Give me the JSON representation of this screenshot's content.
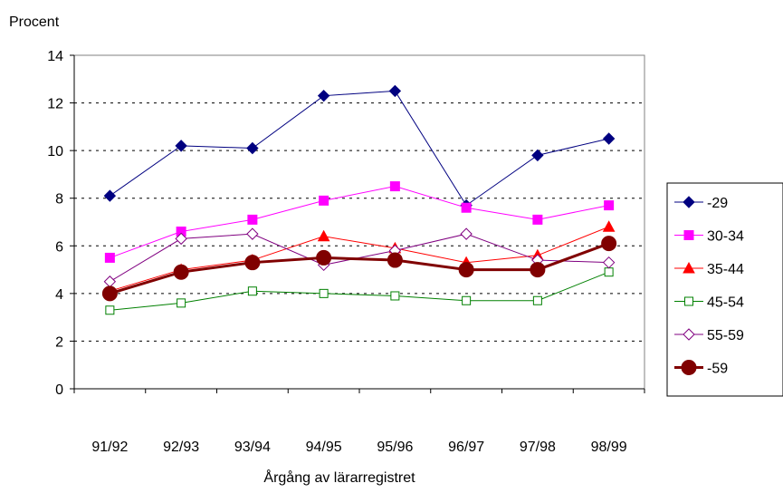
{
  "chart_data": {
    "type": "line",
    "ylabel": "Procent",
    "xlabel": "Årgång av lärarregistret",
    "ylim": [
      0,
      14
    ],
    "yticks": [
      0,
      2,
      4,
      6,
      8,
      10,
      12,
      14
    ],
    "grid": "horizontal dashed",
    "legend_position": "right",
    "categories": [
      "91/92",
      "92/93",
      "93/94",
      "94/95",
      "95/96",
      "96/97",
      "97/98",
      "98/99"
    ],
    "series": [
      {
        "name": "-29",
        "color": "#000080",
        "marker": "diamond-filled",
        "width": 1,
        "values": [
          8.1,
          10.2,
          10.1,
          12.3,
          12.5,
          7.7,
          9.8,
          10.5
        ]
      },
      {
        "name": "30-34",
        "color": "#FF00FF",
        "marker": "square-filled",
        "width": 1,
        "values": [
          5.5,
          6.6,
          7.1,
          7.9,
          8.5,
          7.6,
          7.1,
          7.7
        ]
      },
      {
        "name": "35-44",
        "color": "#FF0000",
        "marker": "triangle-filled",
        "width": 1,
        "values": [
          4.1,
          5.0,
          5.4,
          6.4,
          5.9,
          5.3,
          5.6,
          6.8
        ]
      },
      {
        "name": "45-54",
        "color": "#008000",
        "marker": "square-open",
        "width": 1,
        "values": [
          3.3,
          3.6,
          4.1,
          4.0,
          3.9,
          3.7,
          3.7,
          4.9
        ]
      },
      {
        "name": "55-59",
        "color": "#800080",
        "marker": "diamond-open",
        "width": 1,
        "values": [
          4.5,
          6.3,
          6.5,
          5.2,
          5.8,
          6.5,
          5.4,
          5.3
        ]
      },
      {
        "name": "-59",
        "color": "#800000",
        "marker": "circle-filled",
        "width": 3,
        "values": [
          4.0,
          4.9,
          5.3,
          5.5,
          5.4,
          5.0,
          5.0,
          6.1
        ]
      }
    ]
  }
}
